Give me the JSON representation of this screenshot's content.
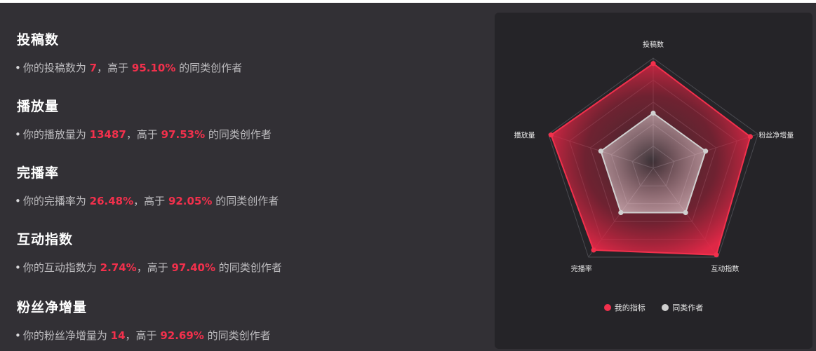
{
  "stats": [
    {
      "title": "投稿数",
      "prefix": "你的投稿数为",
      "value": "7",
      "mid": "，高于",
      "percent": "95.10%",
      "suffix": "的同类创作者"
    },
    {
      "title": "播放量",
      "prefix": "你的播放量为",
      "value": "13487",
      "mid": "，高于",
      "percent": "97.53%",
      "suffix": "的同类创作者"
    },
    {
      "title": "完播率",
      "prefix": "你的完播率为",
      "value": "26.48%",
      "mid": "，高于",
      "percent": "92.05%",
      "suffix": "的同类创作者"
    },
    {
      "title": "互动指数",
      "prefix": "你的互动指数为",
      "value": "2.74%",
      "mid": "，高于",
      "percent": "97.40%",
      "suffix": "的同类创作者"
    },
    {
      "title": "粉丝净增量",
      "prefix": "你的粉丝净增量为",
      "value": "14",
      "mid": "，高于",
      "percent": "92.69%",
      "suffix": "的同类创作者"
    }
  ],
  "chart_data": {
    "type": "radar",
    "axes": [
      "投稿数",
      "粉丝净增量",
      "互动指数",
      "完播率",
      "播放量"
    ],
    "range": [
      0,
      100
    ],
    "series": [
      {
        "name": "我的指标",
        "values": [
          95.1,
          92.69,
          97.4,
          92.05,
          97.53
        ],
        "color": "#f2304c"
      },
      {
        "name": "同类作者",
        "values": [
          50,
          50,
          50,
          50,
          50
        ],
        "color": "#d0d0d0"
      }
    ],
    "legend_position": "bottom"
  },
  "legend": {
    "mine_label": "我的指标",
    "peer_label": "同类作者",
    "mine_color": "#f2304c",
    "peer_color": "#cfcfcf"
  }
}
